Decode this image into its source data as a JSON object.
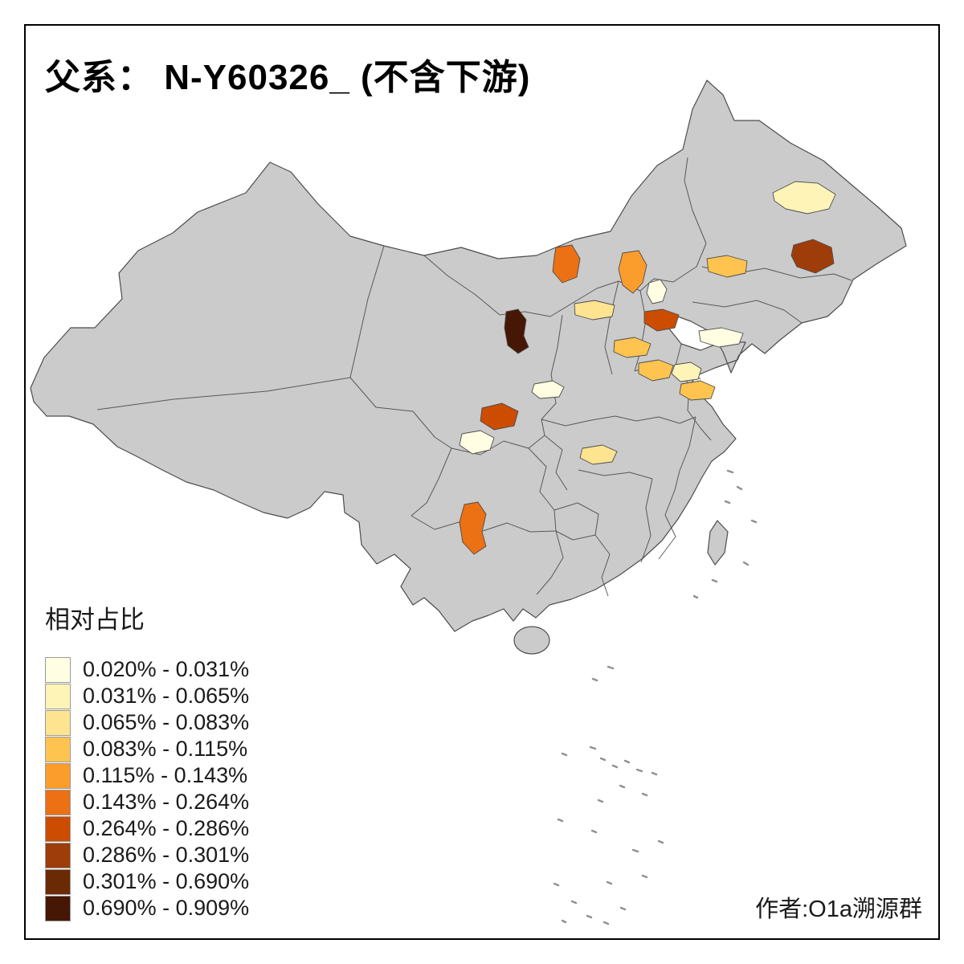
{
  "page": {
    "title": "父系： N-Y60326_ (不含下游)",
    "attribution": "作者:O1a溯源群"
  },
  "legend": {
    "title": "相对占比",
    "classes": [
      {
        "label": "0.020% - 0.031%",
        "color": "#FFFEE3"
      },
      {
        "label": "0.031% - 0.065%",
        "color": "#FFF4B8"
      },
      {
        "label": "0.065% - 0.083%",
        "color": "#FEE391"
      },
      {
        "label": "0.083% - 0.115%",
        "color": "#FEC44F"
      },
      {
        "label": "0.115% - 0.143%",
        "color": "#FB9D2C"
      },
      {
        "label": "0.143% - 0.264%",
        "color": "#EC7014"
      },
      {
        "label": "0.264% - 0.286%",
        "color": "#CC4C02"
      },
      {
        "label": "0.286% - 0.301%",
        "color": "#9E3D09"
      },
      {
        "label": "0.301% - 0.690%",
        "color": "#6B2A06"
      },
      {
        "label": "0.690% - 0.909%",
        "color": "#451704"
      }
    ]
  },
  "map": {
    "background": "#FFFFFF",
    "base_fill": "#CBCBCB",
    "border_color": "#4D4D4D",
    "frame_color": "#000000",
    "regions": [
      {
        "id": "r1",
        "class_index": 1
      },
      {
        "id": "r2",
        "class_index": 7
      },
      {
        "id": "r3",
        "class_index": 5
      },
      {
        "id": "r4",
        "class_index": 4
      },
      {
        "id": "r5",
        "class_index": 3
      },
      {
        "id": "r6",
        "class_index": 0
      },
      {
        "id": "r7",
        "class_index": 6
      },
      {
        "id": "r8",
        "class_index": 2
      },
      {
        "id": "r9",
        "class_index": 9
      },
      {
        "id": "r10",
        "class_index": 3
      },
      {
        "id": "r11",
        "class_index": 0
      },
      {
        "id": "r12",
        "class_index": 3
      },
      {
        "id": "r13",
        "class_index": 1
      },
      {
        "id": "r14",
        "class_index": 3
      },
      {
        "id": "r15",
        "class_index": 0
      },
      {
        "id": "r16",
        "class_index": 6
      },
      {
        "id": "r17",
        "class_index": 0
      },
      {
        "id": "r18",
        "class_index": 2
      },
      {
        "id": "r19",
        "class_index": 5
      }
    ]
  }
}
